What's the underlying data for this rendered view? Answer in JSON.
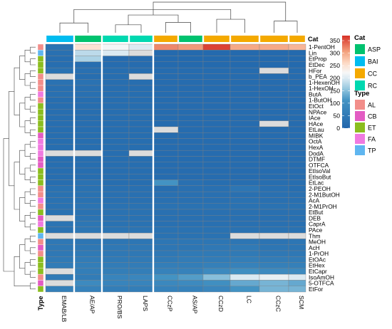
{
  "chart_data": {
    "type": "heatmap",
    "columns": [
      "EMAB/LB",
      "AE/AP",
      "PRO/BS",
      "LAPS",
      "CCzP",
      "AS/AP",
      "CCzD",
      "LC",
      "CCzC",
      "SCM"
    ],
    "column_cat": [
      "BAI",
      "ASP",
      "RC",
      "RC",
      "CC",
      "ASP",
      "CC",
      "CC",
      "CC",
      "CC"
    ],
    "rows": [
      "1-PentOH",
      "Lin",
      "EtProp",
      "EtDec",
      "HFor",
      "b_PEA",
      "1-HexenOH",
      "1-HexOH",
      "ButA",
      "1-ButOH",
      "EtOct",
      "NPAce",
      "IAce",
      "HAce",
      "EtLau",
      "MIBK",
      "OctA",
      "HexA",
      "DodA",
      "DTMF",
      "OTFCA",
      "EtIsoVal",
      "EtIsoBut",
      "EtLac",
      "2-PEOH",
      "2-M1ButOH",
      "AcA",
      "2-M1PrOH",
      "EtBut",
      "DEB",
      "CaprA",
      "PAce",
      "Thm",
      "MeOH",
      "AcH",
      "1-PrOH",
      "EtOAc",
      "EtHex",
      "EtCapr",
      "IsoAmOH",
      "5-OTFCA",
      "EtFor"
    ],
    "row_type": [
      "AL",
      "TP",
      "ET",
      "ET",
      "ET",
      "AL",
      "AL",
      "AL",
      "FA",
      "AL",
      "ET",
      "ET",
      "ET",
      "ET",
      "ET",
      "CB",
      "FA",
      "FA",
      "FA",
      "CB",
      "CB",
      "ET",
      "ET",
      "ET",
      "AL",
      "AL",
      "FA",
      "AL",
      "ET",
      "CB",
      "FA",
      "ET",
      "TP",
      "AL",
      "CB",
      "AL",
      "ET",
      "ET",
      "ET",
      "AL",
      "CB",
      "ET"
    ],
    "values": [
      [
        30,
        250,
        220,
        200,
        320,
        310,
        360,
        300,
        300,
        290
      ],
      [
        25,
        180,
        200,
        null,
        10,
        10,
        10,
        10,
        10,
        10
      ],
      [
        20,
        170,
        15,
        15,
        10,
        10,
        10,
        10,
        10,
        10
      ],
      [
        20,
        20,
        15,
        15,
        10,
        10,
        10,
        10,
        10,
        10
      ],
      [
        30,
        25,
        20,
        20,
        15,
        15,
        15,
        15,
        null,
        15
      ],
      [
        null,
        20,
        20,
        null,
        15,
        15,
        15,
        15,
        15,
        15
      ],
      [
        30,
        30,
        20,
        20,
        15,
        15,
        15,
        15,
        15,
        15
      ],
      [
        25,
        25,
        20,
        20,
        15,
        15,
        15,
        15,
        15,
        15
      ],
      [
        25,
        25,
        20,
        20,
        15,
        15,
        15,
        15,
        15,
        15
      ],
      [
        20,
        20,
        20,
        20,
        15,
        15,
        15,
        15,
        15,
        15
      ],
      [
        20,
        20,
        20,
        20,
        15,
        15,
        15,
        15,
        15,
        15
      ],
      [
        20,
        20,
        20,
        20,
        15,
        15,
        15,
        15,
        15,
        15
      ],
      [
        20,
        20,
        20,
        20,
        15,
        15,
        15,
        15,
        15,
        15
      ],
      [
        20,
        20,
        20,
        20,
        15,
        15,
        15,
        15,
        null,
        15
      ],
      [
        20,
        20,
        20,
        20,
        null,
        15,
        15,
        15,
        15,
        15
      ],
      [
        20,
        20,
        20,
        20,
        15,
        15,
        15,
        15,
        15,
        15
      ],
      [
        20,
        20,
        20,
        20,
        15,
        15,
        15,
        15,
        15,
        15
      ],
      [
        20,
        20,
        20,
        20,
        15,
        15,
        15,
        15,
        15,
        15
      ],
      [
        null,
        null,
        20,
        null,
        15,
        15,
        15,
        15,
        15,
        15
      ],
      [
        20,
        20,
        20,
        20,
        15,
        15,
        15,
        15,
        15,
        15
      ],
      [
        20,
        20,
        20,
        20,
        15,
        15,
        15,
        15,
        15,
        15
      ],
      [
        20,
        20,
        20,
        20,
        15,
        15,
        15,
        15,
        15,
        15
      ],
      [
        20,
        20,
        20,
        20,
        15,
        15,
        15,
        15,
        15,
        15
      ],
      [
        20,
        30,
        20,
        20,
        110,
        25,
        20,
        20,
        20,
        20
      ],
      [
        30,
        30,
        25,
        25,
        20,
        25,
        25,
        40,
        25,
        20
      ],
      [
        30,
        30,
        25,
        25,
        25,
        25,
        25,
        25,
        25,
        25
      ],
      [
        30,
        30,
        25,
        25,
        25,
        25,
        25,
        30,
        25,
        25
      ],
      [
        30,
        35,
        30,
        30,
        30,
        30,
        30,
        30,
        30,
        30
      ],
      [
        30,
        30,
        30,
        30,
        25,
        25,
        25,
        25,
        25,
        25
      ],
      [
        null,
        35,
        30,
        30,
        25,
        25,
        25,
        25,
        25,
        25
      ],
      [
        35,
        40,
        30,
        30,
        25,
        25,
        25,
        25,
        25,
        25
      ],
      [
        30,
        40,
        35,
        35,
        30,
        30,
        30,
        30,
        30,
        30
      ],
      [
        null,
        null,
        null,
        null,
        30,
        30,
        30,
        null,
        null,
        null
      ],
      [
        45,
        40,
        40,
        40,
        40,
        40,
        40,
        40,
        35,
        40
      ],
      [
        45,
        45,
        45,
        45,
        40,
        40,
        45,
        50,
        40,
        40
      ],
      [
        45,
        50,
        45,
        45,
        45,
        50,
        50,
        50,
        45,
        45
      ],
      [
        50,
        55,
        50,
        50,
        50,
        55,
        55,
        60,
        55,
        55
      ],
      [
        55,
        60,
        55,
        55,
        60,
        60,
        65,
        70,
        65,
        65
      ],
      [
        null,
        60,
        60,
        60,
        70,
        70,
        90,
        100,
        90,
        90
      ],
      [
        50,
        55,
        75,
        80,
        110,
        120,
        150,
        200,
        210,
        200
      ],
      [
        null,
        90,
        75,
        75,
        85,
        90,
        100,
        130,
        140,
        130
      ],
      [
        65,
        70,
        60,
        60,
        70,
        70,
        80,
        110,
        140,
        140
      ]
    ],
    "column_dendrogram": [
      {
        "l": 0,
        "r": 1,
        "h": 0.32
      },
      {
        "l": 2,
        "r": 3,
        "h": 0.26
      },
      {
        "l": 4,
        "r": 5,
        "h": 0.34
      },
      {
        "l": 6,
        "r": 7,
        "h": 0.44
      },
      {
        "l": 8,
        "r": 9,
        "h": 0.38
      },
      {
        "l": 11,
        "r": 12,
        "h": 0.58
      },
      {
        "l": 10,
        "r": 13,
        "h": 0.76
      },
      {
        "l": 14,
        "r": 15,
        "h": 1.0
      }
    ],
    "row_dendrogram_levels": [
      0.3,
      0.55,
      1.0
    ],
    "colorbar": {
      "ticks": [
        0,
        50,
        100,
        150,
        200,
        250,
        300,
        350
      ],
      "min": 0,
      "max": 370
    },
    "legend_cat": {
      "title": "Cat",
      "items": [
        "ASP",
        "BAI",
        "CC",
        "RC"
      ],
      "colors": [
        "#00c26f",
        "#00bcf0",
        "#f4a900",
        "#00d8b0"
      ]
    },
    "legend_type": {
      "title": "Type",
      "items": [
        "AL",
        "CB",
        "ET",
        "FA",
        "TP"
      ],
      "colors": [
        "#f28e8a",
        "#e35cc3",
        "#8bbd1e",
        "#f07ae0",
        "#5fb6f0"
      ]
    },
    "top_annotation_label": "Cat",
    "side_annotation_label": "Type",
    "missing_color": "#dcdcdc"
  }
}
